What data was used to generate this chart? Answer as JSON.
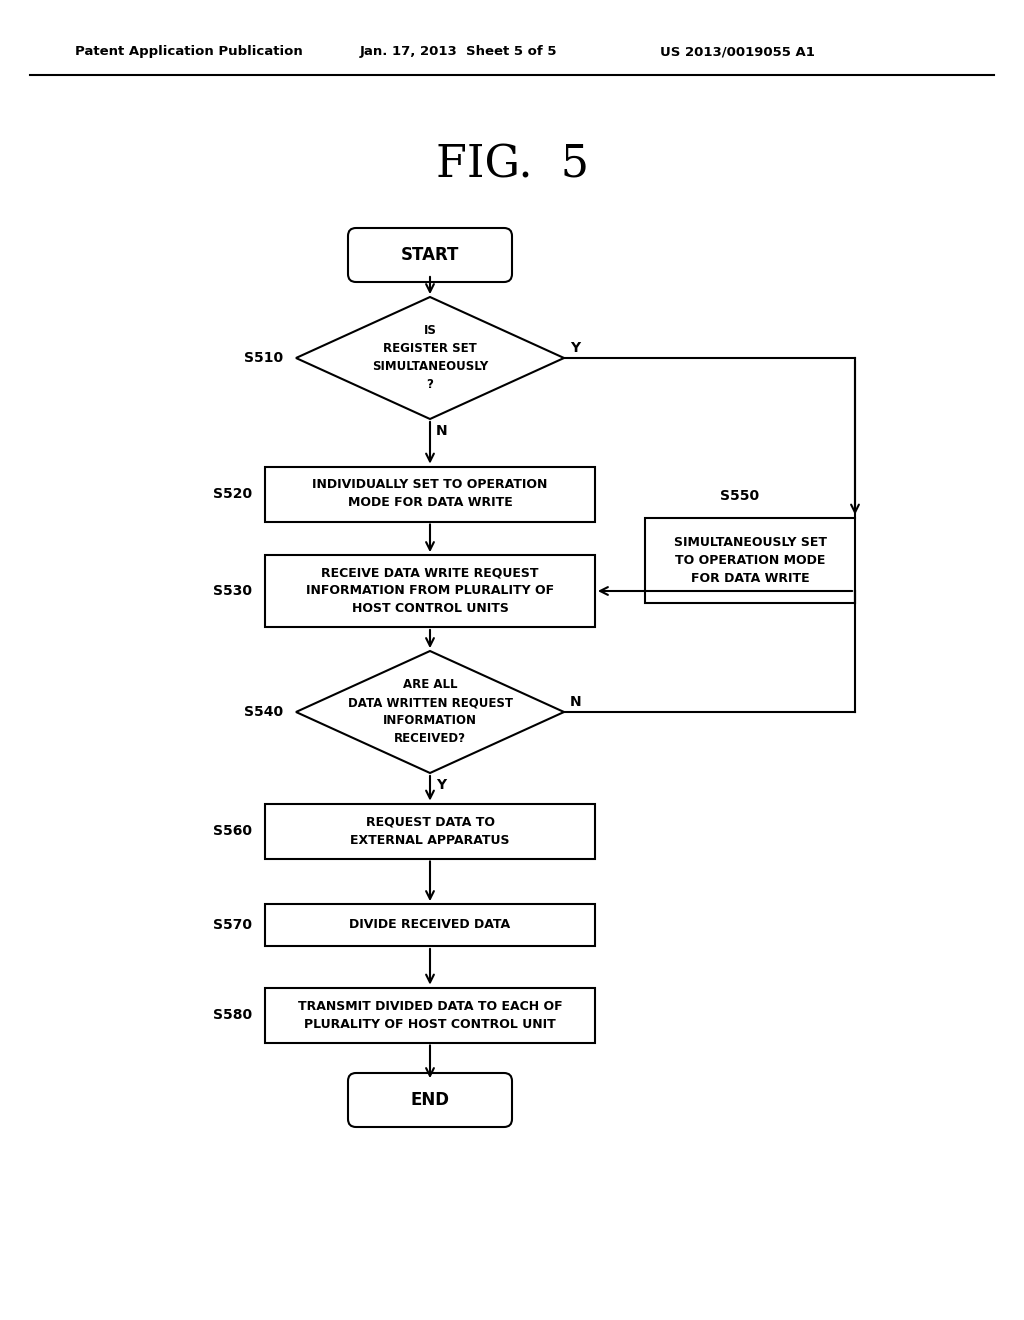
{
  "title": "FIG.  5",
  "header_left": "Patent Application Publication",
  "header_center": "Jan. 17, 2013  Sheet 5 of 5",
  "header_right": "US 2013/0019055 A1",
  "bg_color": "#ffffff",
  "fig_width": 10.24,
  "fig_height": 13.2,
  "dpi": 100,
  "start_text": "START",
  "end_text": "END",
  "s510_label": "S510",
  "s510_text": "IS\nREGISTER SET\nSIMULTANEOUSLY\n?",
  "s520_label": "S520",
  "s520_text": "INDIVIDUALLY SET TO OPERATION\nMODE FOR DATA WRITE",
  "s530_label": "S530",
  "s530_text": "RECEIVE DATA WRITE REQUEST\nINFORMATION FROM PLURALITY OF\nHOST CONTROL UNITS",
  "s540_label": "S540",
  "s540_text": "ARE ALL\nDATA WRITTEN REQUEST\nINFORMATION\nRECEIVED?",
  "s550_label": "S550",
  "s550_text": "SIMULTANEOUSLY SET\nTO OPERATION MODE\nFOR DATA WRITE",
  "s560_label": "S560",
  "s560_text": "REQUEST DATA TO\nEXTERNAL APPARATUS",
  "s570_label": "S570",
  "s570_text": "DIVIDE RECEIVED DATA",
  "s580_label": "S580",
  "s580_text": "TRANSMIT DIVIDED DATA TO EACH OF\nPLURALITY OF HOST CONTROL UNIT",
  "label_y": "Y",
  "label_n": "N"
}
